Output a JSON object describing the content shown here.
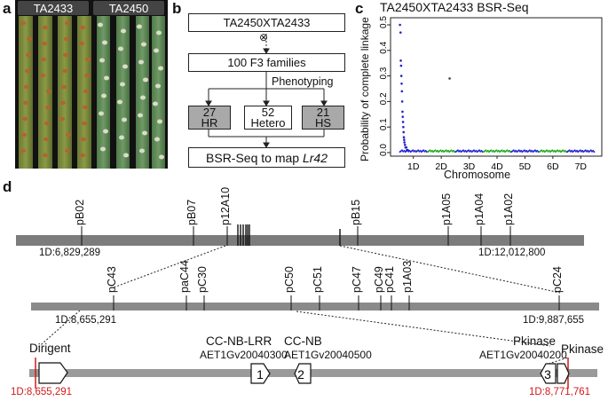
{
  "panel_a": {
    "letter": "a",
    "labels": [
      "TA2433",
      "TA2450"
    ]
  },
  "panel_b": {
    "letter": "b",
    "cross": "TA2450XTA2433",
    "self_symbol": "⊗",
    "families": "100 F3 families",
    "phenotyping": "Phenotyping",
    "groups": [
      {
        "count": "27",
        "class": "HR"
      },
      {
        "count": "52",
        "class": "Hetero"
      },
      {
        "count": "21",
        "class": "HS"
      }
    ],
    "final_prefix": "BSR-Seq to map ",
    "final_gene": "Lr42"
  },
  "chart_data": {
    "type": "scatter",
    "title": "TA2450XTA2433 BSR-Seq",
    "xlabel": "Chromosome",
    "ylabel": "Probability of complete linkage",
    "categories": [
      "1D",
      "2D",
      "3D",
      "4D",
      "5D",
      "6D",
      "7D"
    ],
    "ylim": [
      0,
      0.5
    ],
    "yticks": [
      "0.0",
      "0.1",
      "0.2",
      "0.3",
      "0.4",
      "0.5"
    ],
    "series_colors": [
      "#2222cc",
      "#22aa22"
    ],
    "series": [
      {
        "chromosome": "1D",
        "x": [
          0.02,
          0.04,
          0.05,
          0.06,
          0.07,
          0.08,
          0.09,
          0.1,
          0.11,
          0.12,
          0.13,
          0.14,
          0.15,
          0.16,
          0.17,
          0.18,
          0.2,
          0.22,
          0.25,
          0.27,
          0.3
        ],
        "y": [
          0.5,
          0.47,
          0.36,
          0.34,
          0.3,
          0.27,
          0.24,
          0.2,
          0.16,
          0.14,
          0.12,
          0.1,
          0.08,
          0.06,
          0.05,
          0.04,
          0.03,
          0.02,
          0.02,
          0.01,
          0.01
        ]
      },
      {
        "chromosome": "2D",
        "x": [
          1.8
        ],
        "y": [
          0.29
        ]
      }
    ]
  },
  "panel_d": {
    "letter": "d",
    "row1_markers": [
      "pB02",
      "pB07",
      "p12A10",
      "pB15",
      "p1A05",
      "p1A04",
      "p1A02"
    ],
    "row1_left": "1D:6,829,289",
    "row1_right": "1D:12,012,800",
    "row2_markers": [
      "pC43",
      "paC44",
      "pC30",
      "pC50",
      "pC51",
      "pC47",
      "pC49",
      "pC41",
      "p1A03",
      "pC24"
    ],
    "row2_left": "1D:8,655,291",
    "row2_right": "1D:9,887,655",
    "genes": [
      {
        "name": "Dirigent",
        "id": "",
        "num": ""
      },
      {
        "name": "CC-NB-LRR",
        "id": "AET1Gv20040300",
        "num": "1"
      },
      {
        "name": "CC-NB",
        "id": "AET1Gv20040500",
        "num": "2"
      },
      {
        "name": "Pkinase",
        "id": "AET1Gv20040200",
        "num": "3"
      },
      {
        "name": "Pkinase",
        "id": "",
        "num": ""
      }
    ],
    "row3_left": "1D:8,655,291",
    "row3_right": "1D:8,771,761"
  }
}
